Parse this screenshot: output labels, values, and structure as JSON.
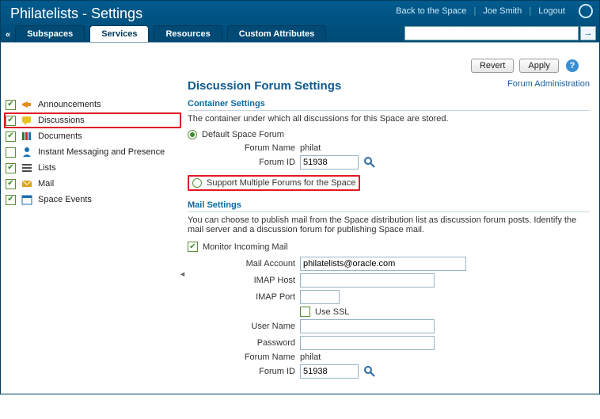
{
  "header": {
    "title": "Philatelists - Settings",
    "links": {
      "back": "Back to the Space",
      "user": "Joe Smith",
      "logout": "Logout"
    }
  },
  "tabs": {
    "subspaces": "Subspaces",
    "services": "Services",
    "resources": "Resources",
    "custom_attributes": "Custom Attributes",
    "active": "services"
  },
  "search": {
    "value": "",
    "placeholder": ""
  },
  "actions": {
    "revert": "Revert",
    "apply": "Apply"
  },
  "services": [
    {
      "key": "announcements",
      "label": "Announcements",
      "checked": true,
      "icon": "megaphone",
      "color": "#e88b1f",
      "selected": false
    },
    {
      "key": "discussions",
      "label": "Discussions",
      "checked": true,
      "icon": "speech",
      "color": "#e8c21f",
      "selected": true
    },
    {
      "key": "documents",
      "label": "Documents",
      "checked": true,
      "icon": "books",
      "color": "#2a7a3a",
      "selected": false
    },
    {
      "key": "im",
      "label": "Instant Messaging and Presence",
      "checked": false,
      "icon": "person",
      "color": "#1b6fb3",
      "selected": false
    },
    {
      "key": "lists",
      "label": "Lists",
      "checked": true,
      "icon": "list",
      "color": "#4a4a4a",
      "selected": false
    },
    {
      "key": "mail",
      "label": "Mail",
      "checked": true,
      "icon": "envelope",
      "color": "#d9a41f",
      "selected": false
    },
    {
      "key": "space_events",
      "label": "Space Events",
      "checked": true,
      "icon": "calendar",
      "color": "#1b6fb3",
      "selected": false
    }
  ],
  "main": {
    "heading": "Discussion Forum Settings",
    "forum_admin": "Forum Administration",
    "container": {
      "title": "Container Settings",
      "desc": "The container under which all discussions for this Space are stored.",
      "opt_default": "Default Space Forum",
      "opt_multiple": "Support Multiple Forums for the Space",
      "selected": "default",
      "forum_name_label": "Forum Name",
      "forum_name_value": "philat",
      "forum_id_label": "Forum ID",
      "forum_id_value": "51938"
    },
    "mail": {
      "title": "Mail Settings",
      "desc": "You can choose to publish mail from the Space distribution list as discussion forum posts. Identify the mail server and a discussion forum for publishing Space mail.",
      "monitor_label": "Monitor Incoming Mail",
      "monitor_checked": true,
      "mail_account_label": "Mail Account",
      "mail_account_value": "philatelists@oracle.com",
      "imap_host_label": "IMAP Host",
      "imap_host_value": "",
      "imap_port_label": "IMAP Port",
      "imap_port_value": "",
      "use_ssl_label": "Use SSL",
      "use_ssl_checked": false,
      "user_name_label": "User Name",
      "user_name_value": "",
      "password_label": "Password",
      "password_value": "",
      "forum_name_label": "Forum Name",
      "forum_name_value": "philat",
      "forum_id_label": "Forum ID",
      "forum_id_value": "51938"
    }
  }
}
